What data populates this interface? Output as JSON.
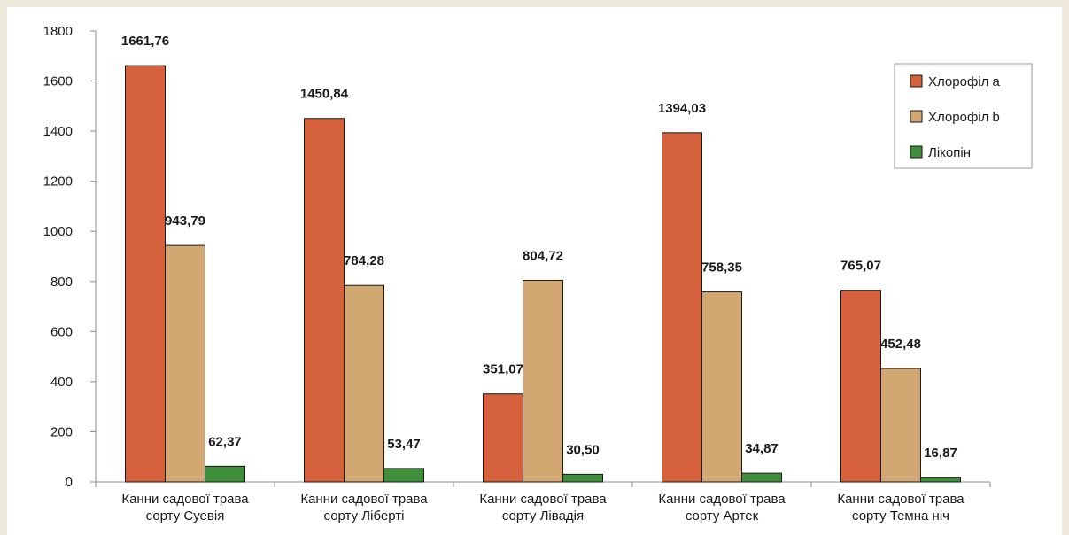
{
  "chart_data": {
    "type": "bar",
    "title": "",
    "xlabel": "",
    "ylabel": "",
    "ylim": [
      0,
      1800
    ],
    "yticks": [
      0,
      200,
      400,
      600,
      800,
      1000,
      1200,
      1400,
      1600,
      1800
    ],
    "grid": false,
    "legend_position": "top-right",
    "categories": [
      [
        "Канни садової трава",
        "сорту Суевія"
      ],
      [
        "Канни садової трава",
        "сорту Ліберті"
      ],
      [
        "Канни садової трава",
        "сорту Лівадія"
      ],
      [
        "Канни садової трава",
        "сорту Артек"
      ],
      [
        "Канни садової трава",
        "сорту Темна ніч"
      ]
    ],
    "series": [
      {
        "name": "Хлорофіл a",
        "color": "#d5613c",
        "values": [
          1661.76,
          1450.84,
          351.07,
          1394.03,
          765.07
        ],
        "labels": [
          "1661,76",
          "1450,84",
          "351,07",
          "1394,03",
          "765,07"
        ]
      },
      {
        "name": "Хлорофіл b",
        "color": "#d1a872",
        "values": [
          943.79,
          784.28,
          804.72,
          758.35,
          452.48
        ],
        "labels": [
          "943,79",
          "784,28",
          "804,72",
          "758,35",
          "452,48"
        ]
      },
      {
        "name": "Лікопін",
        "color": "#3f8f3a",
        "values": [
          62.37,
          53.47,
          30.5,
          34.87,
          16.87
        ],
        "labels": [
          "62,37",
          "53,47",
          "30,50",
          "34,87",
          "16,87"
        ]
      }
    ]
  }
}
